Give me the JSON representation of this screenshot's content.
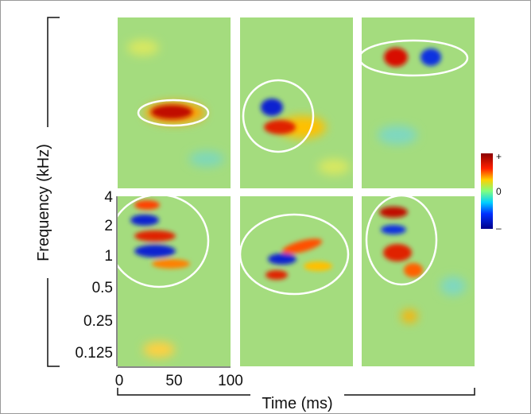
{
  "y_axis": {
    "label": "Frequency (kHz)",
    "ticks": [
      "4",
      "2",
      "1",
      "0.5",
      "0.25",
      "0.125"
    ]
  },
  "x_axis": {
    "label": "Time (ms)",
    "ticks": [
      "0",
      "50",
      "100"
    ]
  },
  "colorbar": {
    "labels": [
      "+",
      "0",
      "–"
    ]
  }
}
